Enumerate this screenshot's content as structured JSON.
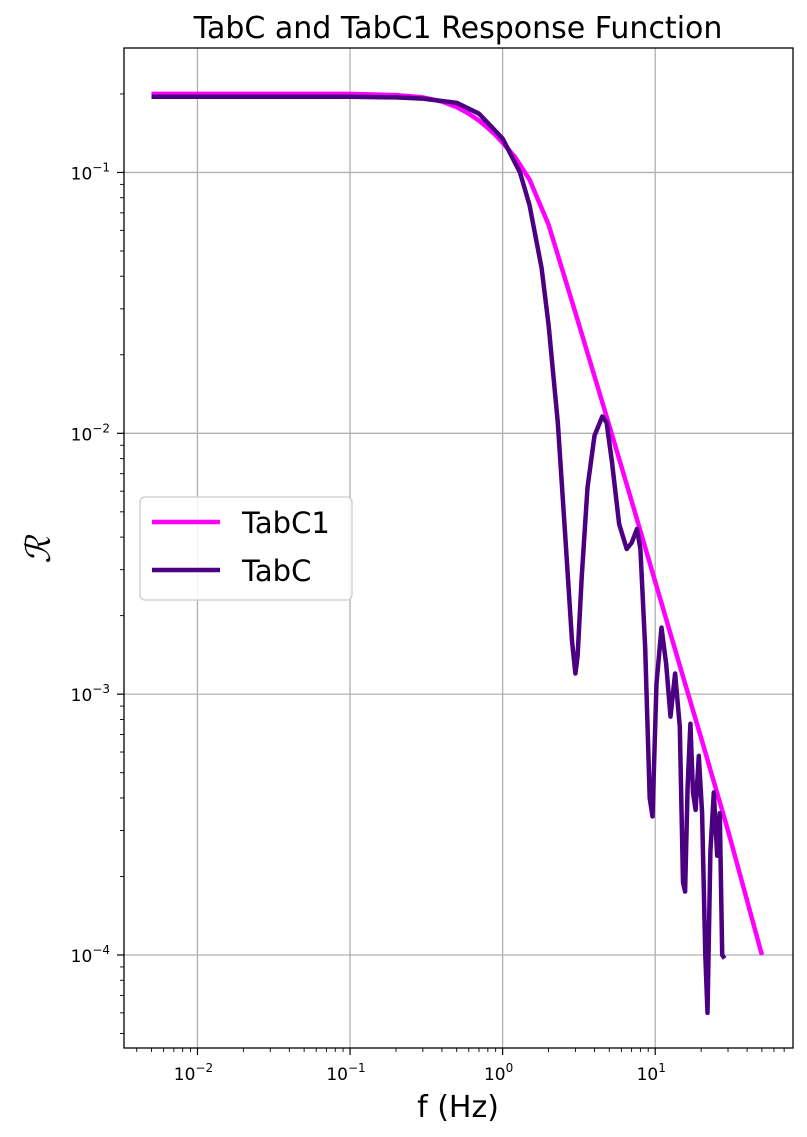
{
  "chart_data": {
    "type": "line",
    "title": "TabC and TabC1 Response Function",
    "xlabel": "f (Hz)",
    "ylabel": "ℛ",
    "xscale": "log",
    "yscale": "log",
    "xlim": [
      0.0033,
      80
    ],
    "ylim": [
      4.4e-05,
      0.3
    ],
    "grid": true,
    "legend_position": "center-left",
    "x_ticks": [
      {
        "value": 0.01,
        "base": "10",
        "exp": "−2"
      },
      {
        "value": 0.1,
        "base": "10",
        "exp": "−1"
      },
      {
        "value": 1,
        "base": "10",
        "exp": "0"
      },
      {
        "value": 10,
        "base": "10",
        "exp": "1"
      }
    ],
    "y_ticks": [
      {
        "value": 0.1,
        "base": "10",
        "exp": "−1"
      },
      {
        "value": 0.01,
        "base": "10",
        "exp": "−2"
      },
      {
        "value": 0.001,
        "base": "10",
        "exp": "−3"
      },
      {
        "value": 0.0001,
        "base": "10",
        "exp": "−4"
      }
    ],
    "series": [
      {
        "name": "TabC1",
        "color": "#ff00ff",
        "x": [
          0.005,
          0.01,
          0.05,
          0.1,
          0.2,
          0.3,
          0.4,
          0.5,
          0.6,
          0.7,
          0.8,
          0.9,
          1.0,
          1.2,
          1.5,
          2.0,
          3.0,
          5.0,
          7.0,
          10.0,
          15.0,
          20.0,
          30.0,
          50.0
        ],
        "y": [
          0.2,
          0.2,
          0.2,
          0.2,
          0.198,
          0.194,
          0.187,
          0.178,
          0.168,
          0.158,
          0.148,
          0.139,
          0.13,
          0.115,
          0.094,
          0.063,
          0.029,
          0.0107,
          0.0055,
          0.0027,
          0.0012,
          0.00068,
          0.0003,
          0.0001
        ]
      },
      {
        "name": "TabC",
        "color": "#4b0082",
        "x": [
          0.005,
          0.01,
          0.05,
          0.1,
          0.2,
          0.3,
          0.5,
          0.7,
          1.0,
          1.3,
          1.5,
          1.8,
          2.0,
          2.3,
          2.6,
          2.85,
          3.0,
          3.1,
          3.3,
          3.6,
          4.0,
          4.5,
          4.8,
          5.2,
          5.8,
          6.5,
          7.0,
          7.6,
          8.0,
          8.6,
          9.2,
          9.6,
          10.2,
          11.0,
          11.8,
          12.6,
          13.5,
          14.5,
          15.2,
          15.7,
          16.3,
          17.0,
          17.7,
          18.4,
          19.3,
          20.3,
          21.3,
          22.0,
          23.0,
          24.2,
          25.5,
          26.5,
          27.5,
          28.5
        ],
        "y": [
          0.195,
          0.195,
          0.195,
          0.195,
          0.194,
          0.192,
          0.185,
          0.168,
          0.135,
          0.1,
          0.075,
          0.043,
          0.026,
          0.011,
          0.0037,
          0.0016,
          0.0012,
          0.0014,
          0.0028,
          0.0062,
          0.0098,
          0.0116,
          0.011,
          0.0078,
          0.0045,
          0.0036,
          0.0038,
          0.0043,
          0.0036,
          0.0015,
          0.0004,
          0.00034,
          0.0011,
          0.0018,
          0.0013,
          0.00082,
          0.0012,
          0.00075,
          0.00019,
          0.000175,
          0.00044,
          0.00077,
          0.00042,
          0.00036,
          0.00058,
          0.00035,
          0.0001,
          6e-05,
          0.00025,
          0.00042,
          0.00024,
          0.00035,
          0.0001,
          9.7e-05
        ]
      }
    ]
  }
}
